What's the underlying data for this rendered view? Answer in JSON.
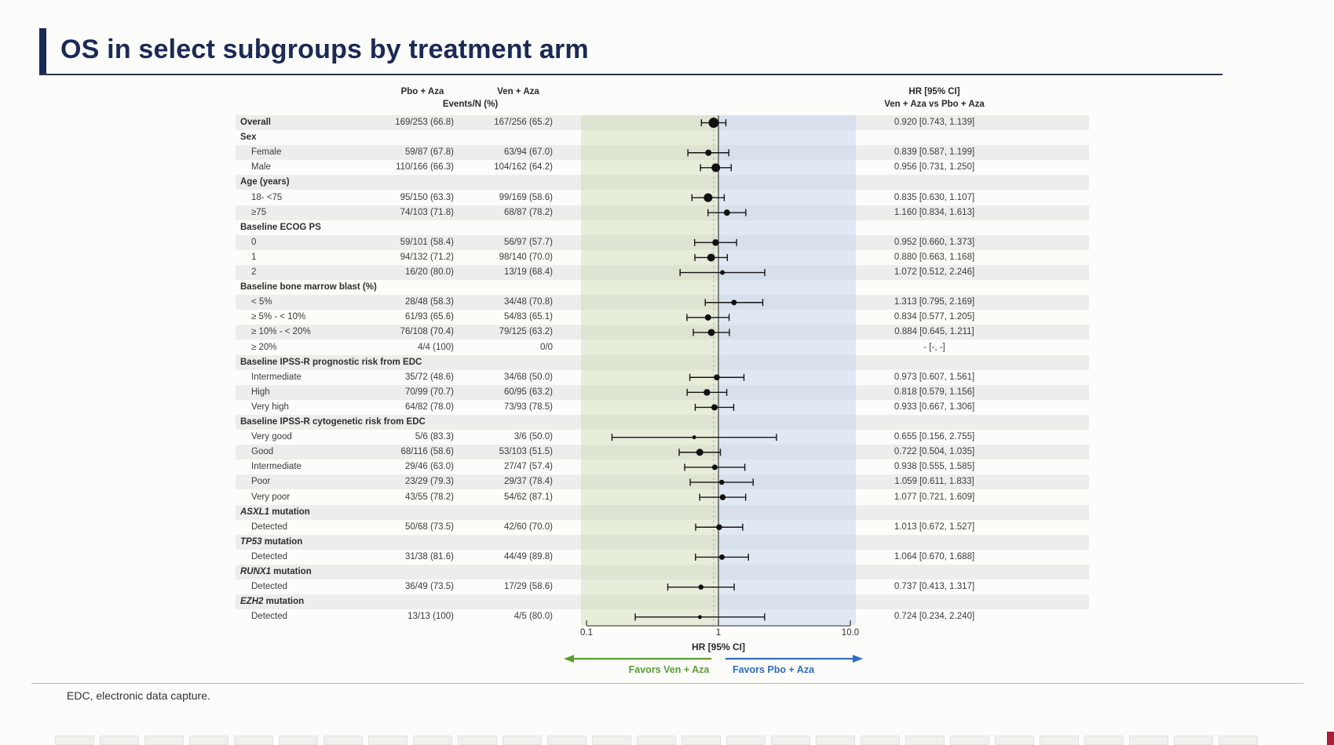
{
  "slide": {
    "title": "OS in select subgroups by treatment arm",
    "footnote": "EDC, electronic data capture.",
    "accent_color": "#1b2a55"
  },
  "table_headers": {
    "pbo": "Pbo + Aza",
    "ven": "Ven + Aza",
    "events": "Events/N (%)",
    "hr_line1": "HR [95% CI]",
    "hr_line2": "Ven + Aza vs Pbo + Aza"
  },
  "axis": {
    "ticks": [
      "0.1",
      "1",
      "10.0"
    ],
    "label": "HR [95% CI]",
    "favors_left": "Favors Ven + Aza",
    "favors_right": "Favors Pbo + Aza",
    "favors_left_color": "#5a9e33",
    "favors_right_color": "#2e6fc0"
  },
  "chart_data": {
    "type": "forest",
    "x_scale": "log10",
    "x_range": [
      0.1,
      10
    ],
    "x_ticks": [
      0.1,
      1,
      10
    ],
    "reference_line": 1,
    "dashed_reference_line": 0.92,
    "xlabel": "HR [95% CI]",
    "band_left_range": [
      0.1,
      1
    ],
    "band_right_range": [
      1,
      10
    ],
    "band_left_color": "#e6edda",
    "band_right_color": "#dfe8f4",
    "rows": [
      {
        "kind": "overall",
        "label": "Overall",
        "pbo": "169/253 (66.8)",
        "ven": "167/256 (65.2)",
        "hr_text": "0.920 [0.743, 1.139]",
        "hr": 0.92,
        "lo": 0.743,
        "hi": 1.139,
        "w": 13
      },
      {
        "kind": "header",
        "label": "Sex"
      },
      {
        "kind": "item",
        "label": "Female",
        "pbo": "59/87 (67.8)",
        "ven": "63/94 (67.0)",
        "hr_text": "0.839 [0.587, 1.199]",
        "hr": 0.839,
        "lo": 0.587,
        "hi": 1.199,
        "w": 8
      },
      {
        "kind": "item",
        "label": "Male",
        "pbo": "110/166 (66.3)",
        "ven": "104/162 (64.2)",
        "hr_text": "0.956 [0.731, 1.250]",
        "hr": 0.956,
        "lo": 0.731,
        "hi": 1.25,
        "w": 11
      },
      {
        "kind": "header",
        "label": "Age (years)"
      },
      {
        "kind": "item",
        "label": "18- <75",
        "pbo": "95/150 (63.3)",
        "ven": "99/169 (58.6)",
        "hr_text": "0.835 [0.630, 1.107]",
        "hr": 0.835,
        "lo": 0.63,
        "hi": 1.107,
        "w": 11
      },
      {
        "kind": "item",
        "label": "≥75",
        "pbo": "74/103 (71.8)",
        "ven": "68/87 (78.2)",
        "hr_text": "1.160 [0.834, 1.613]",
        "hr": 1.16,
        "lo": 0.834,
        "hi": 1.613,
        "w": 8
      },
      {
        "kind": "header",
        "label": "Baseline ECOG PS"
      },
      {
        "kind": "item",
        "label": "0",
        "pbo": "59/101 (58.4)",
        "ven": "56/97 (57.7)",
        "hr_text": "0.952 [0.660, 1.373]",
        "hr": 0.952,
        "lo": 0.66,
        "hi": 1.373,
        "w": 8.5
      },
      {
        "kind": "item",
        "label": "1",
        "pbo": "94/132 (71.2)",
        "ven": "98/140 (70.0)",
        "hr_text": "0.880 [0.663, 1.168]",
        "hr": 0.88,
        "lo": 0.663,
        "hi": 1.168,
        "w": 10
      },
      {
        "kind": "item",
        "label": "2",
        "pbo": "16/20 (80.0)",
        "ven": "13/19 (68.4)",
        "hr_text": "1.072 [0.512, 2.246]",
        "hr": 1.072,
        "lo": 0.512,
        "hi": 2.246,
        "w": 6
      },
      {
        "kind": "header",
        "label": "Baseline bone marrow blast (%)"
      },
      {
        "kind": "item",
        "label": "< 5%",
        "pbo": "28/48 (58.3)",
        "ven": "34/48 (70.8)",
        "hr_text": "1.313 [0.795, 2.169]",
        "hr": 1.313,
        "lo": 0.795,
        "hi": 2.169,
        "w": 7
      },
      {
        "kind": "item",
        "label": "≥ 5% - < 10%",
        "pbo": "61/93 (65.6)",
        "ven": "54/83 (65.1)",
        "hr_text": "0.834 [0.577, 1.205]",
        "hr": 0.834,
        "lo": 0.577,
        "hi": 1.205,
        "w": 8
      },
      {
        "kind": "item",
        "label": "≥ 10% - < 20%",
        "pbo": "76/108 (70.4)",
        "ven": "79/125 (63.2)",
        "hr_text": "0.884 [0.645, 1.211]",
        "hr": 0.884,
        "lo": 0.645,
        "hi": 1.211,
        "w": 9
      },
      {
        "kind": "item",
        "label": "≥ 20%",
        "pbo": "4/4 (100)",
        "ven": "0/0",
        "hr_text": "- [-, -]",
        "hr": null,
        "lo": null,
        "hi": null,
        "w": 0
      },
      {
        "kind": "header",
        "label": "Baseline IPSS-R prognostic risk from EDC"
      },
      {
        "kind": "item",
        "label": "Intermediate",
        "pbo": "35/72 (48.6)",
        "ven": "34/68 (50.0)",
        "hr_text": "0.973 [0.607, 1.561]",
        "hr": 0.973,
        "lo": 0.607,
        "hi": 1.561,
        "w": 7.5
      },
      {
        "kind": "item",
        "label": "High",
        "pbo": "70/99 (70.7)",
        "ven": "60/95 (63.2)",
        "hr_text": "0.818 [0.579, 1.156]",
        "hr": 0.818,
        "lo": 0.579,
        "hi": 1.156,
        "w": 8.5
      },
      {
        "kind": "item",
        "label": "Very high",
        "pbo": "64/82 (78.0)",
        "ven": "73/93 (78.5)",
        "hr_text": "0.933 [0.667, 1.306]",
        "hr": 0.933,
        "lo": 0.667,
        "hi": 1.306,
        "w": 8
      },
      {
        "kind": "header",
        "label": "Baseline IPSS-R cytogenetic risk from EDC"
      },
      {
        "kind": "item",
        "label": "Very good",
        "pbo": "5/6 (83.3)",
        "ven": "3/6 (50.0)",
        "hr_text": "0.655 [0.156, 2.755]",
        "hr": 0.655,
        "lo": 0.156,
        "hi": 2.755,
        "w": 5
      },
      {
        "kind": "item",
        "label": "Good",
        "pbo": "68/116 (58.6)",
        "ven": "53/103 (51.5)",
        "hr_text": "0.722 [0.504, 1.035]",
        "hr": 0.722,
        "lo": 0.504,
        "hi": 1.035,
        "w": 9
      },
      {
        "kind": "item",
        "label": "Intermediate",
        "pbo": "29/46 (63.0)",
        "ven": "27/47 (57.4)",
        "hr_text": "0.938 [0.555, 1.585]",
        "hr": 0.938,
        "lo": 0.555,
        "hi": 1.585,
        "w": 7
      },
      {
        "kind": "item",
        "label": "Poor",
        "pbo": "23/29 (79.3)",
        "ven": "29/37 (78.4)",
        "hr_text": "1.059 [0.611, 1.833]",
        "hr": 1.059,
        "lo": 0.611,
        "hi": 1.833,
        "w": 6.5
      },
      {
        "kind": "item",
        "label": "Very poor",
        "pbo": "43/55 (78.2)",
        "ven": "54/62 (87.1)",
        "hr_text": "1.077 [0.721, 1.609]",
        "hr": 1.077,
        "lo": 0.721,
        "hi": 1.609,
        "w": 7.5
      },
      {
        "kind": "header",
        "italic_prefix": "ASXL1",
        "label": " mutation"
      },
      {
        "kind": "item",
        "label": "Detected",
        "pbo": "50/68 (73.5)",
        "ven": "42/60 (70.0)",
        "hr_text": "1.013 [0.672, 1.527]",
        "hr": 1.013,
        "lo": 0.672,
        "hi": 1.527,
        "w": 7.5
      },
      {
        "kind": "header",
        "italic_prefix": "TP53",
        "label": " mutation"
      },
      {
        "kind": "item",
        "label": "Detected",
        "pbo": "31/38 (81.6)",
        "ven": "44/49 (89.8)",
        "hr_text": "1.064 [0.670, 1.688]",
        "hr": 1.064,
        "lo": 0.67,
        "hi": 1.688,
        "w": 7
      },
      {
        "kind": "header",
        "italic_prefix": "RUNX1",
        "label": " mutation"
      },
      {
        "kind": "item",
        "label": "Detected",
        "pbo": "36/49 (73.5)",
        "ven": "17/29 (58.6)",
        "hr_text": "0.737 [0.413, 1.317]",
        "hr": 0.737,
        "lo": 0.413,
        "hi": 1.317,
        "w": 6.5
      },
      {
        "kind": "header",
        "italic_prefix": "EZH2",
        "label": " mutation"
      },
      {
        "kind": "item",
        "label": "Detected",
        "pbo": "13/13 (100)",
        "ven": "4/5 (80.0)",
        "hr_text": "0.724 [0.234, 2.240]",
        "hr": 0.724,
        "lo": 0.234,
        "hi": 2.24,
        "w": 5
      }
    ]
  }
}
